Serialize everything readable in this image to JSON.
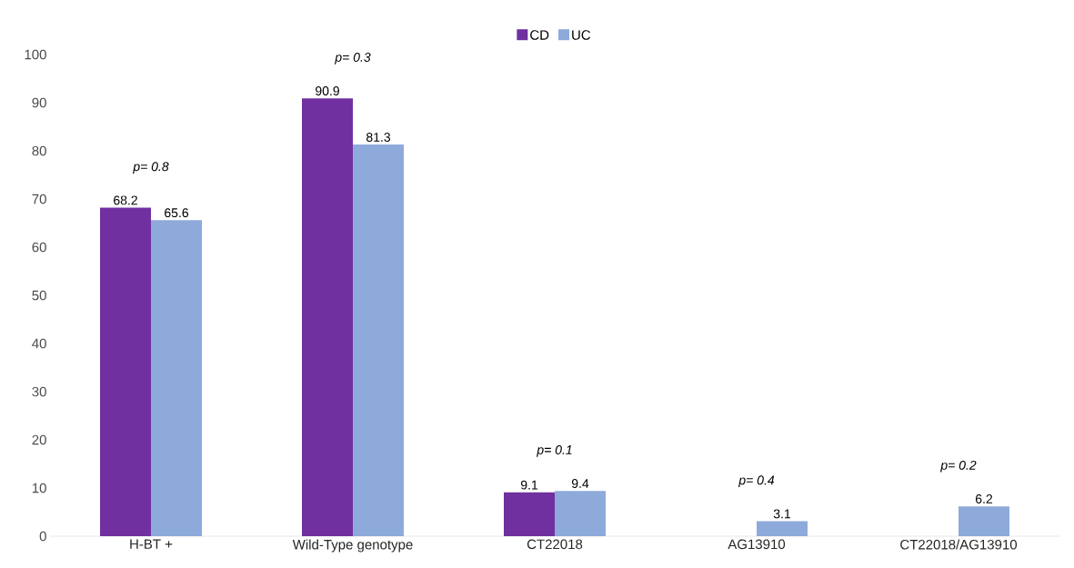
{
  "chart_data": {
    "type": "bar",
    "categories": [
      "H-BT +",
      "Wild-Type genotype",
      "CT22018",
      "AG13910",
      "CT22018/AG13910"
    ],
    "series": [
      {
        "name": "CD",
        "color": "#7030a0",
        "values": [
          68.2,
          90.9,
          9.1,
          null,
          null
        ]
      },
      {
        "name": "UC",
        "color": "#8eaadb",
        "values": [
          65.6,
          81.3,
          9.4,
          3.1,
          6.2
        ]
      }
    ],
    "ylim": [
      0,
      100
    ],
    "yticks": [
      0,
      10,
      20,
      30,
      40,
      50,
      60,
      70,
      80,
      90,
      100
    ],
    "legend": "top",
    "data_labels": true,
    "annotations": [
      "p= 0.8",
      "p= 0.3",
      "p= 0.1",
      "p= 0.4",
      "p= 0.2"
    ]
  }
}
